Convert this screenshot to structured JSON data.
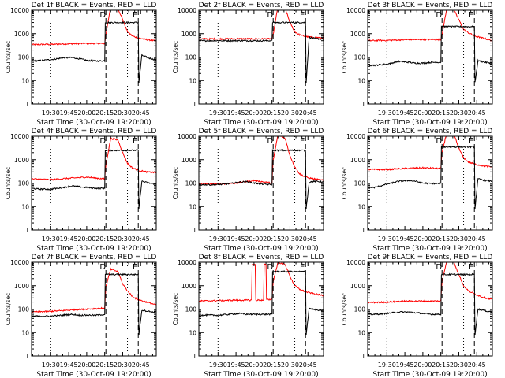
{
  "chart_data": [
    {
      "type": "line",
      "title": "Det 1f BLACK = Events, RED = LLD",
      "xlabel": "Start Time (30-Oct-09 19:20:00)",
      "ylabel": "Counts/sec",
      "yscale": "log",
      "ylim": [
        1,
        10000
      ],
      "ytick_labels": [
        "1",
        "10",
        "100",
        "1000",
        "10000"
      ],
      "xtick_labels": [
        "19:30",
        "19:45",
        "20:00",
        "20:15",
        "20:30",
        "20:45"
      ],
      "xtick_values": [
        10,
        25,
        40,
        55,
        70,
        85
      ],
      "xlim": [
        -6,
        98
      ],
      "vlines": [
        {
          "x": 10,
          "style": "dotted"
        },
        {
          "x": 56,
          "style": "dashed",
          "label": "D"
        },
        {
          "x": 74,
          "style": "dotted"
        },
        {
          "x": 83,
          "style": "dashed",
          "label": "E"
        }
      ],
      "series": [
        {
          "color": "#ff0000",
          "x": [
            -6,
            10,
            25,
            40,
            55,
            56,
            60,
            66,
            70,
            74,
            78,
            83,
            90,
            98
          ],
          "y": [
            340,
            350,
            370,
            380,
            380,
            900,
            15000,
            12000,
            4000,
            1200,
            800,
            650,
            560,
            480
          ]
        },
        {
          "color": "#000000",
          "x": [
            -6,
            0,
            10,
            20,
            28,
            34,
            40,
            48,
            55,
            55.5,
            83,
            83.5,
            86,
            92,
            98
          ],
          "y": [
            70,
            70,
            78,
            92,
            95,
            85,
            72,
            68,
            70,
            3000,
            3000,
            8,
            120,
            90,
            75
          ]
        }
      ]
    },
    {
      "type": "line",
      "title": "Det 2f BLACK = Events, RED = LLD",
      "xlabel": "Start Time (30-Oct-09 19:20:00)",
      "ylabel": "Counts/sec",
      "yscale": "log",
      "ylim": [
        1,
        10000
      ],
      "ytick_labels": [
        "1",
        "10",
        "100",
        "1000",
        "10000"
      ],
      "xtick_labels": [
        "19:30",
        "19:45",
        "20:00",
        "20:15",
        "20:30",
        "20:45"
      ],
      "xtick_values": [
        10,
        25,
        40,
        55,
        70,
        85
      ],
      "xlim": [
        -6,
        98
      ],
      "vlines": [
        {
          "x": 10,
          "style": "dotted"
        },
        {
          "x": 56,
          "style": "dashed",
          "label": "D"
        },
        {
          "x": 74,
          "style": "dotted"
        },
        {
          "x": 83,
          "style": "dashed",
          "label": "E"
        }
      ],
      "series": [
        {
          "color": "#ff0000",
          "x": [
            -6,
            10,
            25,
            40,
            55,
            56,
            60,
            66,
            70,
            74,
            78,
            83,
            90,
            98
          ],
          "y": [
            600,
            600,
            600,
            600,
            600,
            900,
            15000,
            12000,
            3000,
            1200,
            900,
            750,
            700,
            650
          ]
        },
        {
          "color": "#000000",
          "x": [
            -6,
            0,
            10,
            20,
            28,
            34,
            40,
            48,
            55,
            55.5,
            83,
            83.5,
            86,
            92,
            98
          ],
          "y": [
            500,
            500,
            500,
            500,
            500,
            500,
            500,
            500,
            500,
            3000,
            3000,
            8,
            700,
            600,
            600
          ]
        }
      ]
    },
    {
      "type": "line",
      "title": "Det 3f BLACK = Events, RED = LLD",
      "xlabel": "Start Time (30-Oct-09 19:20:00)",
      "ylabel": "Counts/sec",
      "yscale": "log",
      "ylim": [
        1,
        10000
      ],
      "ytick_labels": [
        "1",
        "10",
        "100",
        "1000",
        "10000"
      ],
      "xtick_labels": [
        "19:30",
        "19:45",
        "20:00",
        "20:15",
        "20:30",
        "20:45"
      ],
      "xtick_values": [
        10,
        25,
        40,
        55,
        70,
        85
      ],
      "xlim": [
        -6,
        98
      ],
      "vlines": [
        {
          "x": 10,
          "style": "dotted"
        },
        {
          "x": 56,
          "style": "dashed",
          "label": "D"
        },
        {
          "x": 74,
          "style": "dotted"
        },
        {
          "x": 83,
          "style": "dashed",
          "label": "E"
        }
      ],
      "series": [
        {
          "color": "#ff0000",
          "x": [
            -6,
            10,
            25,
            40,
            55,
            56,
            60,
            66,
            70,
            74,
            78,
            83,
            90,
            98
          ],
          "y": [
            500,
            520,
            550,
            560,
            560,
            900,
            12000,
            10000,
            4000,
            1500,
            1100,
            800,
            650,
            500
          ]
        },
        {
          "color": "#000000",
          "x": [
            -6,
            0,
            10,
            20,
            28,
            34,
            40,
            48,
            55,
            55.5,
            83,
            83.5,
            86,
            92,
            98
          ],
          "y": [
            45,
            45,
            50,
            65,
            60,
            55,
            55,
            60,
            60,
            2000,
            2000,
            8,
            70,
            60,
            55
          ]
        }
      ]
    },
    {
      "type": "line",
      "title": "Det 4f BLACK = Events, RED = LLD",
      "xlabel": "Start Time (30-Oct-09 19:20:00)",
      "ylabel": "Counts/sec",
      "yscale": "log",
      "ylim": [
        1,
        10000
      ],
      "ytick_labels": [
        "1",
        "10",
        "100",
        "1000",
        "10000"
      ],
      "xtick_labels": [
        "19:30",
        "19:45",
        "20:00",
        "20:15",
        "20:30",
        "20:45"
      ],
      "xtick_values": [
        10,
        25,
        40,
        55,
        70,
        85
      ],
      "xlim": [
        -6,
        98
      ],
      "vlines": [
        {
          "x": 10,
          "style": "dotted"
        },
        {
          "x": 56,
          "style": "dashed",
          "label": "D"
        },
        {
          "x": 74,
          "style": "dotted"
        },
        {
          "x": 83,
          "style": "dashed",
          "label": "E"
        }
      ],
      "series": [
        {
          "color": "#ff0000",
          "x": [
            -6,
            10,
            25,
            40,
            55,
            56,
            60,
            66,
            70,
            74,
            78,
            83,
            90,
            98
          ],
          "y": [
            150,
            140,
            160,
            180,
            150,
            600,
            8000,
            7000,
            2000,
            700,
            450,
            350,
            300,
            280
          ]
        },
        {
          "color": "#000000",
          "x": [
            -6,
            0,
            10,
            20,
            28,
            34,
            40,
            48,
            55,
            55.5,
            83,
            83.5,
            86,
            92,
            98
          ],
          "y": [
            60,
            55,
            55,
            65,
            75,
            70,
            65,
            60,
            60,
            2500,
            2500,
            8,
            120,
            100,
            90
          ]
        }
      ]
    },
    {
      "type": "line",
      "title": "Det 5f BLACK = Events, RED = LLD",
      "xlabel": "Start Time (30-Oct-09 19:20:00)",
      "ylabel": "Counts/sec",
      "yscale": "log",
      "ylim": [
        1,
        10000
      ],
      "ytick_labels": [
        "1",
        "10",
        "100",
        "1000",
        "10000"
      ],
      "xtick_labels": [
        "19:30",
        "19:45",
        "20:00",
        "20:15",
        "20:30",
        "20:45"
      ],
      "xtick_values": [
        10,
        25,
        40,
        55,
        70,
        85
      ],
      "xlim": [
        -6,
        98
      ],
      "vlines": [
        {
          "x": 10,
          "style": "dotted"
        },
        {
          "x": 56,
          "style": "dashed",
          "label": "D"
        },
        {
          "x": 74,
          "style": "dotted"
        },
        {
          "x": 83,
          "style": "dashed",
          "label": "E"
        }
      ],
      "series": [
        {
          "color": "#ff0000",
          "x": [
            -6,
            10,
            25,
            40,
            55,
            56,
            60,
            66,
            70,
            74,
            78,
            83,
            90,
            98
          ],
          "y": [
            95,
            90,
            100,
            130,
            100,
            900,
            12000,
            8000,
            1500,
            500,
            250,
            180,
            150,
            130
          ]
        },
        {
          "color": "#000000",
          "x": [
            -6,
            0,
            10,
            20,
            28,
            34,
            40,
            48,
            55,
            55.5,
            83,
            83.5,
            86,
            92,
            98
          ],
          "y": [
            85,
            85,
            85,
            95,
            110,
            115,
            100,
            90,
            85,
            2500,
            2500,
            8,
            110,
            120,
            110
          ]
        }
      ]
    },
    {
      "type": "line",
      "title": "Det 6f BLACK = Events, RED = LLD",
      "xlabel": "Start Time (30-Oct-09 19:20:00)",
      "ylabel": "Counts/sec",
      "yscale": "log",
      "ylim": [
        1,
        10000
      ],
      "ytick_labels": [
        "1",
        "10",
        "100",
        "1000",
        "10000"
      ],
      "xtick_labels": [
        "19:30",
        "19:45",
        "20:00",
        "20:15",
        "20:30",
        "20:45"
      ],
      "xtick_values": [
        10,
        25,
        40,
        55,
        70,
        85
      ],
      "xlim": [
        -6,
        98
      ],
      "vlines": [
        {
          "x": 10,
          "style": "dotted"
        },
        {
          "x": 56,
          "style": "dashed",
          "label": "D"
        },
        {
          "x": 74,
          "style": "dotted"
        },
        {
          "x": 83,
          "style": "dashed",
          "label": "E"
        }
      ],
      "series": [
        {
          "color": "#ff0000",
          "x": [
            -6,
            10,
            25,
            40,
            55,
            56,
            60,
            66,
            70,
            74,
            78,
            83,
            90,
            98
          ],
          "y": [
            380,
            380,
            420,
            450,
            420,
            2000,
            15000,
            12000,
            3000,
            1200,
            800,
            650,
            550,
            480
          ]
        },
        {
          "color": "#000000",
          "x": [
            -6,
            0,
            10,
            20,
            28,
            34,
            40,
            48,
            55,
            55.5,
            83,
            83.5,
            86,
            92,
            98
          ],
          "y": [
            65,
            65,
            90,
            120,
            130,
            120,
            100,
            95,
            95,
            3500,
            3500,
            8,
            150,
            130,
            120
          ]
        }
      ]
    },
    {
      "type": "line",
      "title": "Det 7f BLACK = Events, RED = LLD",
      "xlabel": "Start Time (30-Oct-09 19:20:00)",
      "ylabel": "Counts/sec",
      "yscale": "log",
      "ylim": [
        1,
        10000
      ],
      "ytick_labels": [
        "1",
        "10",
        "100",
        "1000",
        "10000"
      ],
      "xtick_labels": [
        "19:30",
        "19:45",
        "20:00",
        "20:15",
        "20:30",
        "20:45"
      ],
      "xtick_values": [
        10,
        25,
        40,
        55,
        70,
        85
      ],
      "xlim": [
        -6,
        98
      ],
      "vlines": [
        {
          "x": 10,
          "style": "dotted"
        },
        {
          "x": 56,
          "style": "dashed",
          "label": "D"
        },
        {
          "x": 74,
          "style": "dotted"
        },
        {
          "x": 83,
          "style": "dashed",
          "label": "E"
        }
      ],
      "series": [
        {
          "color": "#ff0000",
          "x": [
            -6,
            10,
            25,
            40,
            55,
            56,
            60,
            66,
            70,
            74,
            78,
            83,
            90,
            98
          ],
          "y": [
            75,
            80,
            90,
            100,
            110,
            900,
            5000,
            4000,
            1200,
            600,
            350,
            250,
            200,
            150
          ]
        },
        {
          "color": "#000000",
          "x": [
            -6,
            0,
            10,
            20,
            28,
            34,
            40,
            48,
            55,
            55.5,
            83,
            83.5,
            86,
            92,
            98
          ],
          "y": [
            50,
            50,
            50,
            55,
            60,
            55,
            55,
            55,
            60,
            3000,
            3000,
            8,
            90,
            80,
            70
          ]
        }
      ]
    },
    {
      "type": "line",
      "title": "Det 8f BLACK = Events, RED = LLD",
      "xlabel": "Start Time (30-Oct-09 19:20:00)",
      "ylabel": "Counts/sec",
      "yscale": "log",
      "ylim": [
        1,
        10000
      ],
      "ytick_labels": [
        "1",
        "10",
        "100",
        "1000",
        "10000"
      ],
      "xtick_labels": [
        "19:30",
        "19:45",
        "20:00",
        "20:15",
        "20:30",
        "20:45"
      ],
      "xtick_values": [
        10,
        25,
        40,
        55,
        70,
        85
      ],
      "xlim": [
        -6,
        98
      ],
      "vlines": [
        {
          "x": 10,
          "style": "dotted"
        },
        {
          "x": 56,
          "style": "dashed",
          "label": "D"
        },
        {
          "x": 74,
          "style": "dotted"
        },
        {
          "x": 83,
          "style": "dashed",
          "label": "E"
        }
      ],
      "series": [
        {
          "color": "#ff0000",
          "x": [
            -6,
            10,
            25,
            38,
            38.5,
            41,
            41.5,
            48,
            48.5,
            50,
            50.5,
            55,
            56,
            60,
            66,
            70,
            74,
            78,
            83,
            90,
            98
          ],
          "y": [
            220,
            230,
            240,
            240,
            8000,
            8000,
            240,
            240,
            8000,
            8000,
            250,
            260,
            1500,
            10000,
            8000,
            2500,
            1000,
            700,
            550,
            450,
            380
          ]
        },
        {
          "color": "#000000",
          "x": [
            -6,
            0,
            10,
            20,
            28,
            34,
            40,
            48,
            55,
            55.5,
            83,
            83.5,
            86,
            92,
            98
          ],
          "y": [
            55,
            55,
            55,
            60,
            65,
            60,
            60,
            60,
            60,
            4000,
            4000,
            8,
            110,
            90,
            85
          ]
        }
      ]
    },
    {
      "type": "line",
      "title": "Det 9f BLACK = Events, RED = LLD",
      "xlabel": "Start Time (30-Oct-09 19:20:00)",
      "ylabel": "Counts/sec",
      "yscale": "log",
      "ylim": [
        1,
        10000
      ],
      "ytick_labels": [
        "1",
        "10",
        "100",
        "1000",
        "10000"
      ],
      "xtick_labels": [
        "19:30",
        "19:45",
        "20:00",
        "20:15",
        "20:30",
        "20:45"
      ],
      "xtick_values": [
        10,
        25,
        40,
        55,
        70,
        85
      ],
      "xlim": [
        -6,
        98
      ],
      "vlines": [
        {
          "x": 10,
          "style": "dotted"
        },
        {
          "x": 56,
          "style": "dashed",
          "label": "D"
        },
        {
          "x": 74,
          "style": "dotted"
        },
        {
          "x": 83,
          "style": "dashed",
          "label": "E"
        }
      ],
      "series": [
        {
          "color": "#ff0000",
          "x": [
            -6,
            10,
            25,
            40,
            55,
            56,
            60,
            66,
            70,
            74,
            78,
            83,
            90,
            98
          ],
          "y": [
            190,
            200,
            220,
            220,
            220,
            1500,
            12000,
            10000,
            3000,
            1000,
            600,
            450,
            320,
            260
          ]
        },
        {
          "color": "#000000",
          "x": [
            -6,
            0,
            10,
            20,
            28,
            34,
            40,
            48,
            55,
            55.5,
            83,
            83.5,
            86,
            92,
            98
          ],
          "y": [
            60,
            60,
            65,
            75,
            75,
            70,
            65,
            60,
            60,
            3000,
            3000,
            8,
            100,
            85,
            75
          ]
        }
      ]
    }
  ]
}
